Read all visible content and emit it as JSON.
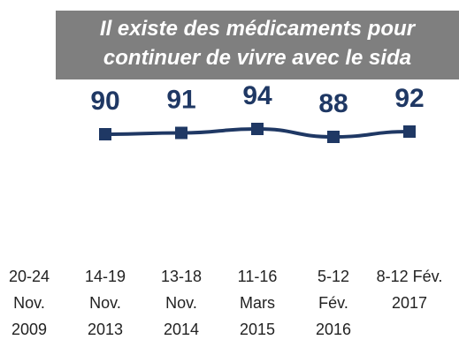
{
  "chart_data": {
    "type": "line",
    "title": "Il existe des médicaments pour\ncontinuer de vivre avec le sida",
    "categories": [
      "20-24\nNov.\n2009",
      "14-19\nNov.\n2013",
      "13-18\nNov.\n2014",
      "11-16\nMars\n2015",
      "5-12\nFév.\n2016",
      "8-12 Fév.\n2017"
    ],
    "values": [
      null,
      90,
      91,
      94,
      88,
      92
    ],
    "color": "#1f3864",
    "ylim": [
      0,
      100
    ]
  }
}
